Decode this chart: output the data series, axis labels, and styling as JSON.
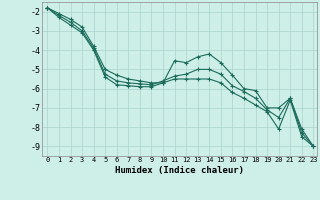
{
  "xlabel": "Humidex (Indice chaleur)",
  "bg_color": "#ceeee8",
  "grid_color": "#aad4cc",
  "line_color": "#1a6b5a",
  "xlim": [
    -0.5,
    23.3
  ],
  "ylim": [
    -9.5,
    -1.5
  ],
  "yticks": [
    -2,
    -3,
    -4,
    -5,
    -6,
    -7,
    -8,
    -9
  ],
  "xticks": [
    0,
    1,
    2,
    3,
    4,
    5,
    6,
    7,
    8,
    9,
    10,
    11,
    12,
    13,
    14,
    15,
    16,
    17,
    18,
    19,
    20,
    21,
    22,
    23
  ],
  "series": [
    [
      -1.8,
      -2.1,
      -2.4,
      -2.8,
      -3.8,
      -5.0,
      -5.3,
      -5.5,
      -5.6,
      -5.7,
      -5.7,
      -4.55,
      -4.65,
      -4.35,
      -4.2,
      -4.65,
      -5.3,
      -6.0,
      -6.1,
      -7.0,
      -7.0,
      -6.5,
      -8.1,
      -9.0
    ],
    [
      -1.8,
      -2.2,
      -2.55,
      -3.0,
      -3.9,
      -5.25,
      -5.6,
      -5.7,
      -5.75,
      -5.8,
      -5.6,
      -5.35,
      -5.25,
      -5.0,
      -5.0,
      -5.25,
      -5.85,
      -6.15,
      -6.5,
      -7.1,
      -7.5,
      -6.5,
      -8.3,
      -9.0
    ],
    [
      -1.8,
      -2.3,
      -2.7,
      -3.1,
      -4.0,
      -5.4,
      -5.8,
      -5.85,
      -5.9,
      -5.9,
      -5.7,
      -5.5,
      -5.5,
      -5.5,
      -5.5,
      -5.7,
      -6.2,
      -6.5,
      -6.85,
      -7.2,
      -8.1,
      -6.6,
      -8.5,
      -9.0
    ]
  ]
}
